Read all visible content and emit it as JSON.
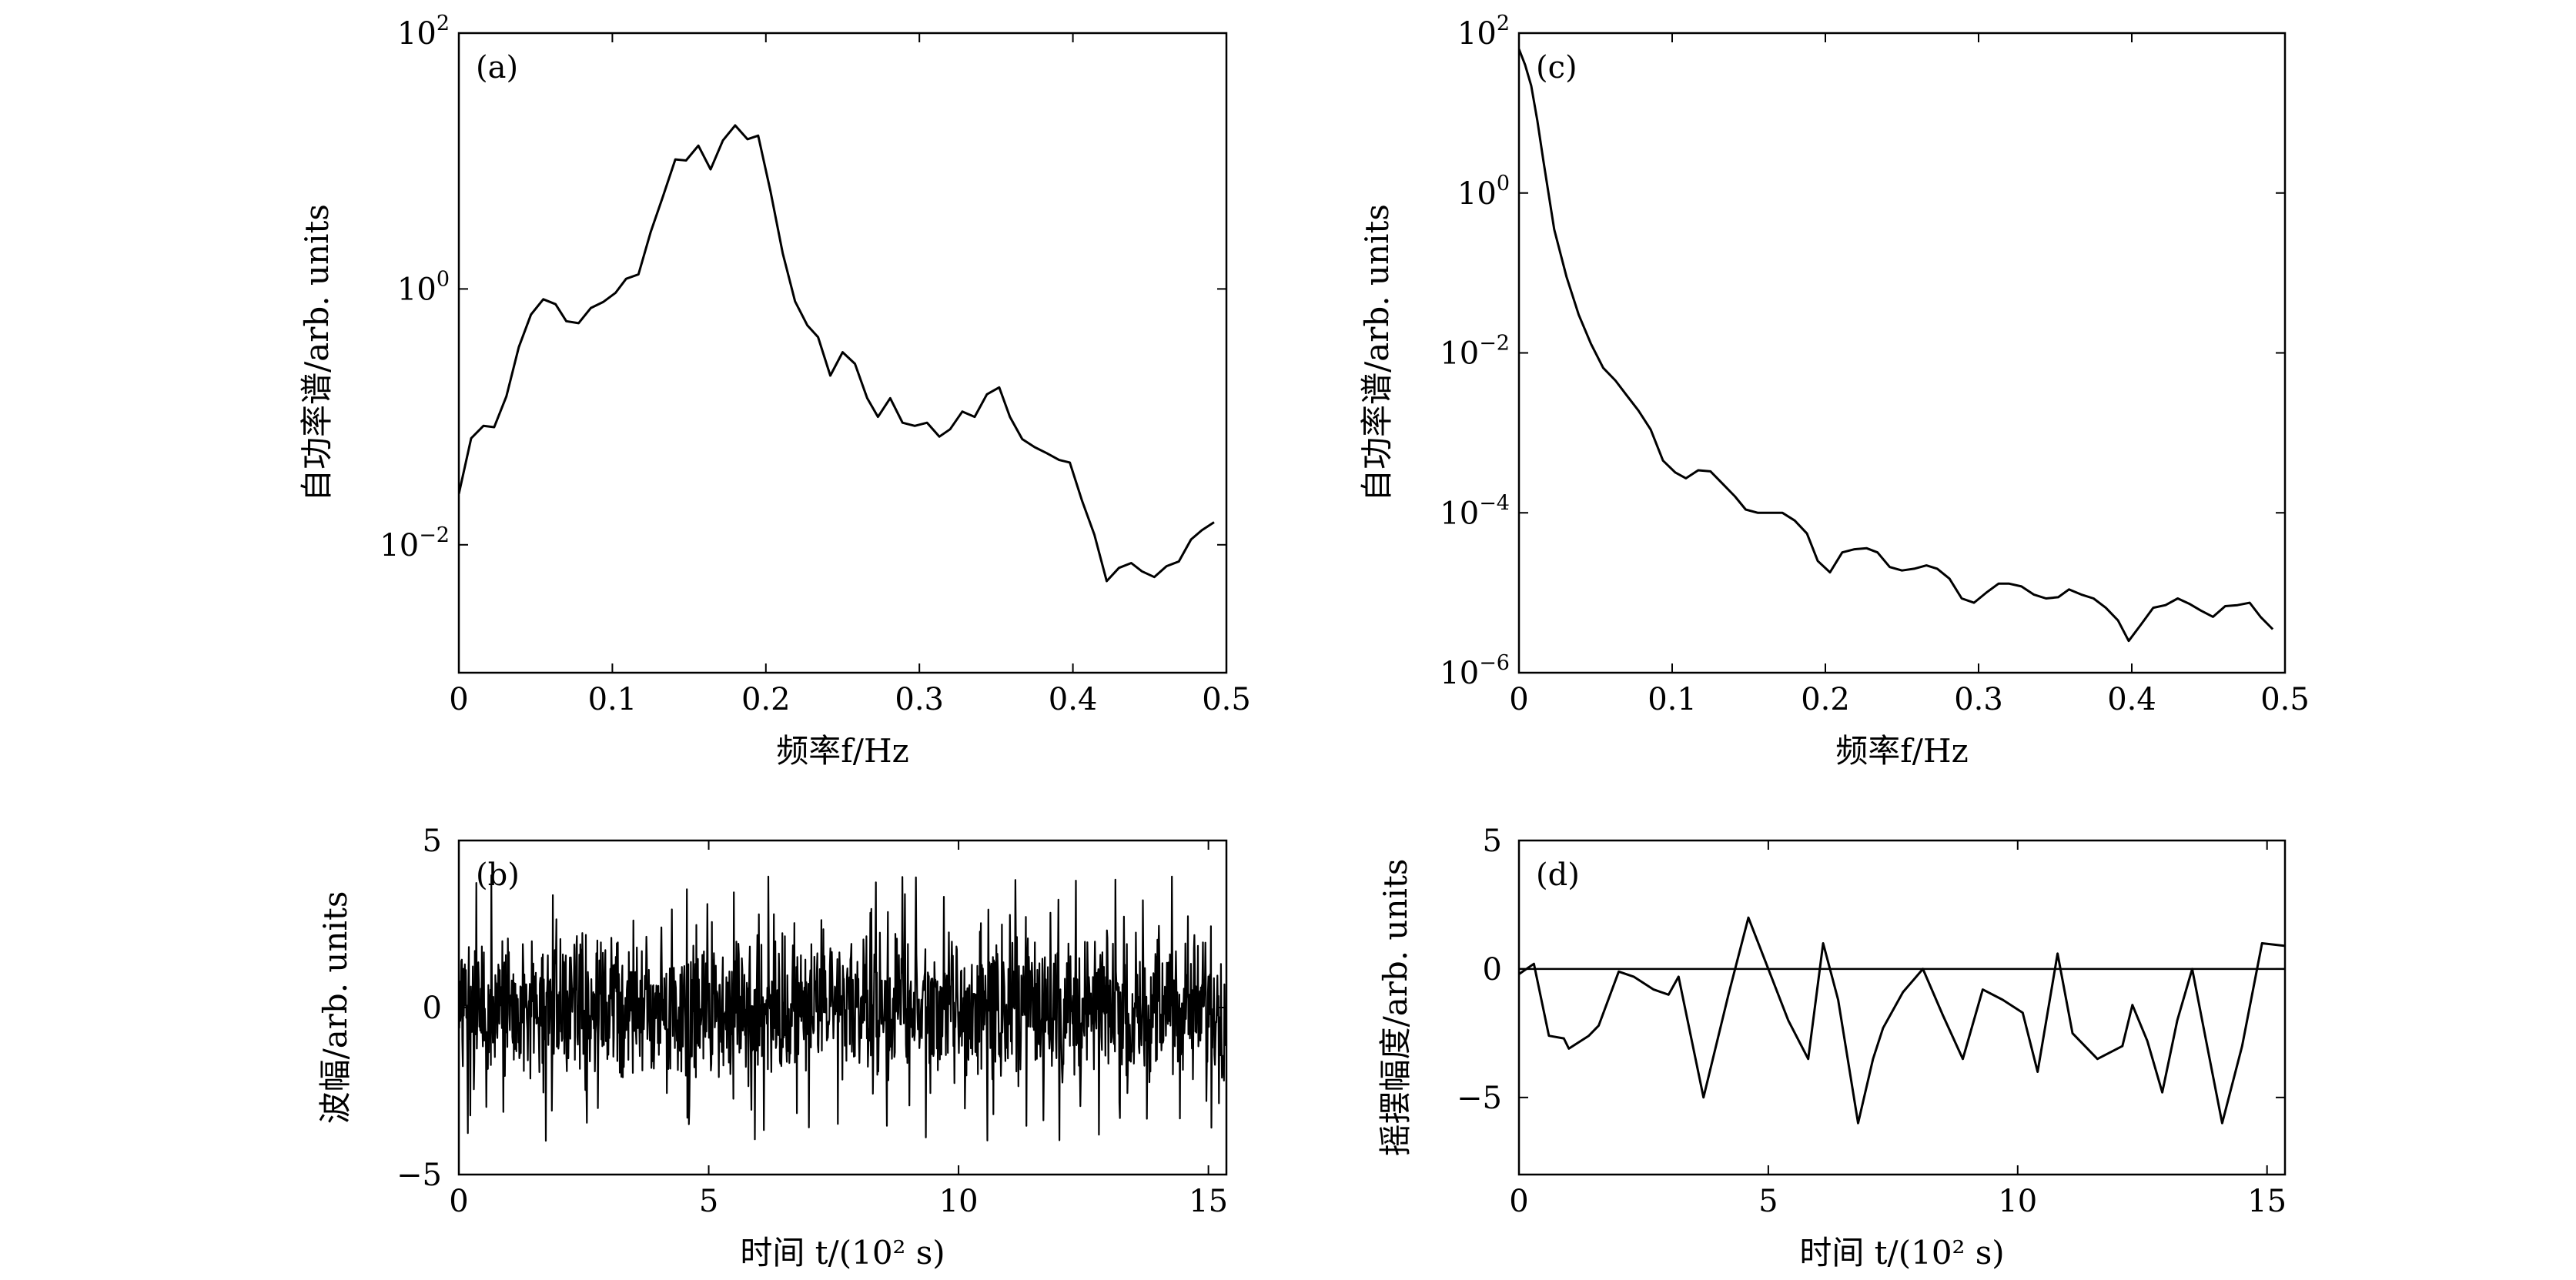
{
  "chart_data": [
    {
      "panel": "(a)",
      "type": "line",
      "xlabel": "频率f/Hz",
      "ylabel": "自功率谱/arb. units",
      "xlim": [
        0,
        0.5
      ],
      "ylim": [
        0.001,
        100
      ],
      "yscale": "log",
      "xticks": [
        "0",
        "0.1",
        "0.2",
        "0.3",
        "0.4",
        "0.5"
      ],
      "yticks": [
        {
          "base": "10",
          "exp": "2"
        },
        {
          "base": "10",
          "exp": "0"
        },
        {
          "base": "10",
          "exp": "−2"
        }
      ],
      "x": [
        0,
        0.008,
        0.016,
        0.023,
        0.031,
        0.039,
        0.047,
        0.055,
        0.063,
        0.07,
        0.078,
        0.086,
        0.094,
        0.102,
        0.109,
        0.117,
        0.125,
        0.133,
        0.141,
        0.148,
        0.156,
        0.164,
        0.172,
        0.18,
        0.188,
        0.195,
        0.203,
        0.211,
        0.219,
        0.227,
        0.234,
        0.242,
        0.25,
        0.258,
        0.266,
        0.273,
        0.281,
        0.289,
        0.297,
        0.305,
        0.313,
        0.32,
        0.328,
        0.336,
        0.344,
        0.352,
        0.359,
        0.367,
        0.375,
        0.383,
        0.391,
        0.398,
        0.406,
        0.414,
        0.422,
        0.43,
        0.438,
        0.445,
        0.453,
        0.461,
        0.469,
        0.477,
        0.484,
        0.492
      ],
      "y": [
        0.025,
        0.068,
        0.085,
        0.083,
        0.145,
        0.35,
        0.63,
        0.83,
        0.76,
        0.56,
        0.54,
        0.71,
        0.79,
        0.93,
        1.2,
        1.3,
        2.8,
        5.3,
        10.3,
        10.1,
        13.2,
        8.6,
        14.5,
        19,
        14.8,
        15.8,
        5.8,
        1.9,
        0.8,
        0.52,
        0.42,
        0.21,
        0.32,
        0.26,
        0.14,
        0.1,
        0.14,
        0.09,
        0.085,
        0.09,
        0.07,
        0.08,
        0.11,
        0.1,
        0.15,
        0.17,
        0.1,
        0.067,
        0.058,
        0.052,
        0.046,
        0.044,
        0.022,
        0.012,
        0.0052,
        0.0066,
        0.0072,
        0.0062,
        0.0056,
        0.0068,
        0.0074,
        0.011,
        0.013,
        0.015
      ]
    },
    {
      "panel": "(b)",
      "type": "line",
      "xlabel": "时间 t/(10² s)",
      "ylabel": "波幅/arb. units",
      "xlim": [
        0,
        15.36
      ],
      "ylim": [
        -5,
        5
      ],
      "xticks": [
        "0",
        "5",
        "10",
        "15"
      ],
      "yticks": [
        "5",
        "0",
        "−5"
      ],
      "n_points": 1536,
      "amplitude_range": [
        -4.1,
        4.9
      ]
    },
    {
      "panel": "(c)",
      "type": "line",
      "xlabel": "频率f/Hz",
      "ylabel": "自功率谱/arb. units",
      "xlim": [
        0,
        0.5
      ],
      "ylim": [
        1e-06,
        100
      ],
      "yscale": "log",
      "xticks": [
        "0",
        "0.1",
        "0.2",
        "0.3",
        "0.4",
        "0.5"
      ],
      "yticks": [
        {
          "base": "10",
          "exp": "2"
        },
        {
          "base": "10",
          "exp": "0"
        },
        {
          "base": "10",
          "exp": "−2"
        },
        {
          "base": "10",
          "exp": "−4"
        },
        {
          "base": "10",
          "exp": "−6"
        }
      ],
      "x": [
        0,
        0.004,
        0.008,
        0.012,
        0.016,
        0.023,
        0.031,
        0.039,
        0.047,
        0.055,
        0.063,
        0.07,
        0.078,
        0.086,
        0.094,
        0.102,
        0.109,
        0.117,
        0.125,
        0.133,
        0.141,
        0.148,
        0.156,
        0.164,
        0.172,
        0.18,
        0.188,
        0.195,
        0.203,
        0.211,
        0.219,
        0.227,
        0.234,
        0.242,
        0.25,
        0.258,
        0.266,
        0.273,
        0.281,
        0.289,
        0.297,
        0.305,
        0.313,
        0.32,
        0.328,
        0.336,
        0.344,
        0.352,
        0.359,
        0.367,
        0.375,
        0.383,
        0.391,
        0.398,
        0.406,
        0.414,
        0.422,
        0.43,
        0.438,
        0.445,
        0.453,
        0.461,
        0.469,
        0.477,
        0.484,
        0.492
      ],
      "y": [
        63,
        40,
        22,
        8,
        2.5,
        0.35,
        0.09,
        0.03,
        0.013,
        0.0065,
        0.0045,
        0.003,
        0.0019,
        0.0011,
        0.00045,
        0.00032,
        0.00027,
        0.00034,
        0.00033,
        0.00023,
        0.00016,
        0.00011,
        0.0001,
        0.0001,
        0.0001,
        8e-05,
        5.5e-05,
        2.5e-05,
        1.8e-05,
        3.2e-05,
        3.5e-05,
        3.6e-05,
        3.2e-05,
        2.1e-05,
        1.9e-05,
        2e-05,
        2.2e-05,
        2e-05,
        1.5e-05,
        8.5e-06,
        7.5e-06,
        1e-05,
        1.3e-05,
        1.3e-05,
        1.2e-05,
        9.5e-06,
        8.5e-06,
        8.8e-06,
        1.1e-05,
        9.5e-06,
        8.5e-06,
        6.5e-06,
        4.5e-06,
        2.5e-06,
        4e-06,
        6.5e-06,
        7e-06,
        8.5e-06,
        7.2e-06,
        6e-06,
        5e-06,
        6.8e-06,
        7e-06,
        7.5e-06,
        5e-06,
        3.5e-06
      ]
    },
    {
      "panel": "(d)",
      "type": "line",
      "xlabel": "时间 t/(10² s)",
      "ylabel": "摇摆幅度/arb. units",
      "xlim": [
        0,
        15.36
      ],
      "ylim": [
        -8,
        5
      ],
      "xticks": [
        "0",
        "5",
        "10",
        "15"
      ],
      "yticks": [
        "5",
        "0",
        "−5"
      ],
      "hline": 0,
      "x": [
        0,
        0.3,
        0.6,
        0.9,
        1.0,
        1.4,
        1.6,
        2.0,
        2.3,
        2.7,
        3.0,
        3.2,
        3.7,
        4.2,
        4.6,
        5.0,
        5.4,
        5.8,
        6.1,
        6.4,
        6.8,
        7.1,
        7.3,
        7.7,
        8.1,
        8.5,
        8.9,
        9.3,
        9.7,
        10.1,
        10.4,
        10.8,
        11.1,
        11.6,
        12.1,
        12.3,
        12.6,
        12.9,
        13.2,
        13.5,
        13.8,
        14.1,
        14.5,
        14.9,
        15.36
      ],
      "y": [
        -0.2,
        0.2,
        -2.6,
        -2.7,
        -3.1,
        -2.6,
        -2.2,
        -0.1,
        -0.3,
        -0.8,
        -1.0,
        -0.3,
        -5.0,
        -1.0,
        2.0,
        0.0,
        -2.0,
        -3.5,
        1.0,
        -1.2,
        -6.0,
        -3.5,
        -2.3,
        -0.9,
        0.0,
        -1.8,
        -3.5,
        -0.8,
        -1.2,
        -1.7,
        -4.0,
        0.6,
        -2.5,
        -3.5,
        -3.0,
        -1.4,
        -2.8,
        -4.8,
        -2.0,
        0.0,
        -3.0,
        -6.0,
        -3.0,
        1.0,
        0.9
      ]
    }
  ]
}
